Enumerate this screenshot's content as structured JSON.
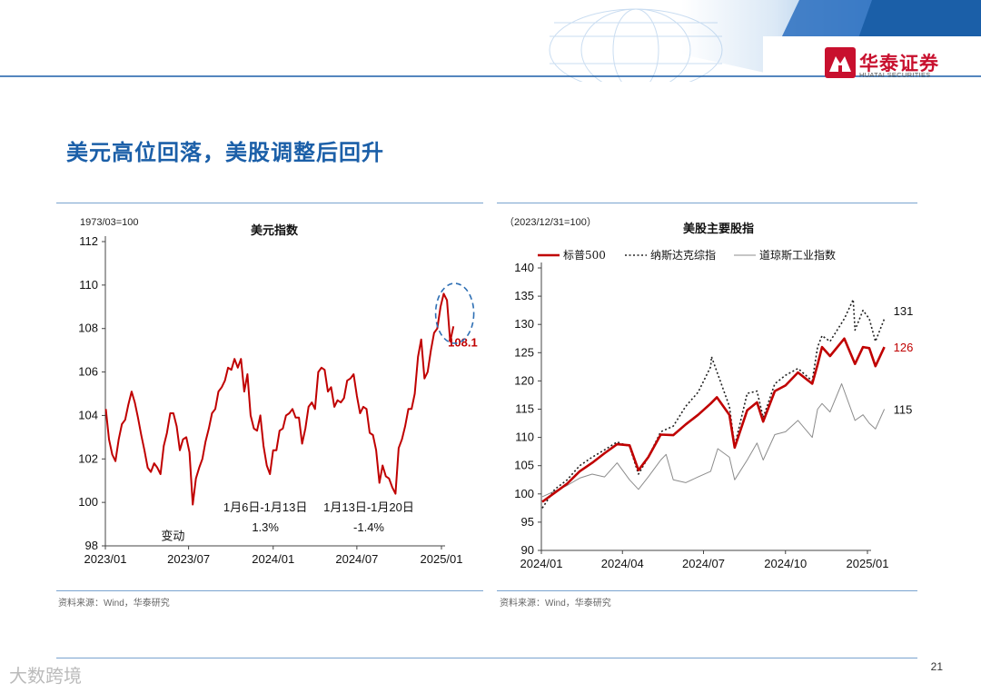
{
  "header": {
    "logo_text": "华泰证券",
    "logo_sub": "HUATAI SECURITIES",
    "accent": "#1b5fa8",
    "brand_red": "#c8102e"
  },
  "slide_title": "美元高位回落，美股调整后回升",
  "page_number": "21",
  "watermark": "大数跨境",
  "chart_data": [
    {
      "type": "line",
      "title": "美元指数",
      "unit_note": "1973/03=100",
      "source": "资料来源：Wind，华泰研究",
      "ylim": [
        98,
        112
      ],
      "yticks": [
        98,
        100,
        102,
        104,
        106,
        108,
        110,
        112
      ],
      "xlim": [
        "2023/01",
        "2025/01"
      ],
      "xticks": [
        "2023/01",
        "2023/07",
        "2024/01",
        "2024/07",
        "2025/01"
      ],
      "series": [
        {
          "color": "#c00000",
          "points": [
            [
              "2023-01-02",
              104.3
            ],
            [
              "2023-01-09",
              102.9
            ],
            [
              "2023-01-16",
              102.2
            ],
            [
              "2023-01-23",
              101.9
            ],
            [
              "2023-01-30",
              102.9
            ],
            [
              "2023-02-06",
              103.6
            ],
            [
              "2023-02-13",
              103.8
            ],
            [
              "2023-02-20",
              104.5
            ],
            [
              "2023-02-27",
              105.1
            ],
            [
              "2023-03-06",
              104.6
            ],
            [
              "2023-03-13",
              103.9
            ],
            [
              "2023-03-20",
              103.1
            ],
            [
              "2023-03-27",
              102.4
            ],
            [
              "2023-04-03",
              101.6
            ],
            [
              "2023-04-10",
              101.4
            ],
            [
              "2023-04-17",
              101.8
            ],
            [
              "2023-04-24",
              101.6
            ],
            [
              "2023-05-01",
              101.3
            ],
            [
              "2023-05-08",
              102.6
            ],
            [
              "2023-05-15",
              103.2
            ],
            [
              "2023-05-22",
              104.1
            ],
            [
              "2023-05-29",
              104.1
            ],
            [
              "2023-06-05",
              103.5
            ],
            [
              "2023-06-12",
              102.4
            ],
            [
              "2023-06-19",
              102.9
            ],
            [
              "2023-06-26",
              103.0
            ],
            [
              "2023-07-03",
              102.3
            ],
            [
              "2023-07-10",
              99.9
            ],
            [
              "2023-07-17",
              101.1
            ],
            [
              "2023-07-24",
              101.6
            ],
            [
              "2023-07-31",
              102.0
            ],
            [
              "2023-08-07",
              102.8
            ],
            [
              "2023-08-14",
              103.4
            ],
            [
              "2023-08-21",
              104.1
            ],
            [
              "2023-08-28",
              104.3
            ],
            [
              "2023-09-04",
              105.1
            ],
            [
              "2023-09-11",
              105.3
            ],
            [
              "2023-09-18",
              105.6
            ],
            [
              "2023-09-25",
              106.2
            ],
            [
              "2023-10-02",
              106.1
            ],
            [
              "2023-10-09",
              106.6
            ],
            [
              "2023-10-16",
              106.2
            ],
            [
              "2023-10-23",
              106.6
            ],
            [
              "2023-10-30",
              105.1
            ],
            [
              "2023-11-06",
              105.9
            ],
            [
              "2023-11-13",
              104.0
            ],
            [
              "2023-11-20",
              103.4
            ],
            [
              "2023-11-27",
              103.3
            ],
            [
              "2023-12-04",
              104.0
            ],
            [
              "2023-12-11",
              102.6
            ],
            [
              "2023-12-18",
              101.7
            ],
            [
              "2023-12-25",
              101.3
            ],
            [
              "2024-01-01",
              102.4
            ],
            [
              "2024-01-08",
              102.4
            ],
            [
              "2024-01-15",
              103.3
            ],
            [
              "2024-01-22",
              103.4
            ],
            [
              "2024-01-29",
              104.0
            ],
            [
              "2024-02-05",
              104.1
            ],
            [
              "2024-02-12",
              104.3
            ],
            [
              "2024-02-19",
              103.9
            ],
            [
              "2024-02-26",
              103.9
            ],
            [
              "2024-03-04",
              102.7
            ],
            [
              "2024-03-11",
              103.4
            ],
            [
              "2024-03-18",
              104.4
            ],
            [
              "2024-03-25",
              104.6
            ],
            [
              "2024-04-01",
              104.3
            ],
            [
              "2024-04-08",
              106.0
            ],
            [
              "2024-04-15",
              106.2
            ],
            [
              "2024-04-22",
              106.1
            ],
            [
              "2024-04-29",
              105.1
            ],
            [
              "2024-05-06",
              105.3
            ],
            [
              "2024-05-13",
              104.4
            ],
            [
              "2024-05-20",
              104.7
            ],
            [
              "2024-05-27",
              104.6
            ],
            [
              "2024-06-03",
              104.8
            ],
            [
              "2024-06-10",
              105.6
            ],
            [
              "2024-06-17",
              105.7
            ],
            [
              "2024-06-24",
              105.9
            ],
            [
              "2024-07-01",
              104.9
            ],
            [
              "2024-07-08",
              104.1
            ],
            [
              "2024-07-15",
              104.4
            ],
            [
              "2024-07-22",
              104.3
            ],
            [
              "2024-07-29",
              103.2
            ],
            [
              "2024-08-05",
              103.1
            ],
            [
              "2024-08-12",
              102.4
            ],
            [
              "2024-08-19",
              100.9
            ],
            [
              "2024-08-26",
              101.7
            ],
            [
              "2024-09-02",
              101.2
            ],
            [
              "2024-09-09",
              101.1
            ],
            [
              "2024-09-16",
              100.7
            ],
            [
              "2024-09-23",
              100.4
            ],
            [
              "2024-09-30",
              102.5
            ],
            [
              "2024-10-07",
              102.9
            ],
            [
              "2024-10-14",
              103.5
            ],
            [
              "2024-10-21",
              104.3
            ],
            [
              "2024-10-28",
              104.3
            ],
            [
              "2024-11-04",
              105.0
            ],
            [
              "2024-11-11",
              106.7
            ],
            [
              "2024-11-18",
              107.5
            ],
            [
              "2024-11-25",
              105.7
            ],
            [
              "2024-12-02",
              106.0
            ],
            [
              "2024-12-09",
              107.0
            ],
            [
              "2024-12-16",
              107.8
            ],
            [
              "2024-12-23",
              108.0
            ],
            [
              "2024-12-30",
              109.0
            ],
            [
              "2025-01-06",
              109.6
            ],
            [
              "2025-01-13",
              109.3
            ],
            [
              "2025-01-20",
              107.4
            ],
            [
              "2025-01-27",
              108.1
            ]
          ]
        }
      ],
      "annotations": [
        {
          "lines": [
            "1月6日-1月13日",
            "1.3%"
          ],
          "x": "2023-12-15",
          "y": 100.0
        },
        {
          "lines": [
            "1月13日-1月20日",
            "-1.4%"
          ],
          "x": "2024-07-27",
          "y": 100.0
        },
        {
          "lines": [
            "变动"
          ],
          "x": "2023-05-28",
          "y": 98.7
        }
      ],
      "end_label": {
        "text": "108.1",
        "x": "2025-01-27",
        "y": 108.1,
        "color": "#c00000"
      },
      "highlight_ellipse": {
        "x": "2025-01-18",
        "y": 108.7,
        "color": "#2e6fb4"
      }
    },
    {
      "type": "line",
      "title": "美股主要股指",
      "unit_note": "（2023/12/31=100）",
      "source": "资料来源：Wind，华泰研究",
      "ylim": [
        90,
        140
      ],
      "yticks": [
        90,
        95,
        100,
        105,
        110,
        115,
        120,
        125,
        130,
        135,
        140
      ],
      "xlim": [
        "2024/01",
        "2025/01"
      ],
      "xticks": [
        "2024/01",
        "2024/04",
        "2024/07",
        "2024/10",
        "2025/01"
      ],
      "legend_position": "top",
      "series": [
        {
          "name": "标普500",
          "color": "#c00000",
          "style": "solid-thick",
          "end_label": "126",
          "points": [
            [
              "2024-01-02",
              98.6
            ],
            [
              "2024-01-16",
              100.2
            ],
            [
              "2024-01-30",
              101.8
            ],
            [
              "2024-02-13",
              104.0
            ],
            [
              "2024-02-27",
              105.5
            ],
            [
              "2024-03-12",
              107.2
            ],
            [
              "2024-03-26",
              108.8
            ],
            [
              "2024-04-09",
              108.6
            ],
            [
              "2024-04-19",
              104.2
            ],
            [
              "2024-04-30",
              106.5
            ],
            [
              "2024-05-14",
              110.5
            ],
            [
              "2024-05-28",
              110.4
            ],
            [
              "2024-06-11",
              112.3
            ],
            [
              "2024-06-25",
              114.0
            ],
            [
              "2024-07-09",
              116.0
            ],
            [
              "2024-07-16",
              117.1
            ],
            [
              "2024-07-30",
              114.0
            ],
            [
              "2024-08-05",
              108.2
            ],
            [
              "2024-08-19",
              114.8
            ],
            [
              "2024-08-30",
              116.2
            ],
            [
              "2024-09-06",
              112.8
            ],
            [
              "2024-09-19",
              118.2
            ],
            [
              "2024-10-01",
              119.2
            ],
            [
              "2024-10-15",
              121.5
            ],
            [
              "2024-10-31",
              119.5
            ],
            [
              "2024-11-06",
              122.9
            ],
            [
              "2024-11-11",
              126.0
            ],
            [
              "2024-11-20",
              124.4
            ],
            [
              "2024-12-06",
              127.5
            ],
            [
              "2024-12-18",
              123.0
            ],
            [
              "2024-12-27",
              126.0
            ],
            [
              "2025-01-03",
              125.8
            ],
            [
              "2025-01-10",
              122.6
            ],
            [
              "2025-01-20",
              126.0
            ]
          ]
        },
        {
          "name": "纳斯达克综指",
          "color": "#222222",
          "style": "dotted",
          "end_label": "131",
          "points": [
            [
              "2024-01-02",
              97.5
            ],
            [
              "2024-01-16",
              100.8
            ],
            [
              "2024-01-30",
              102.5
            ],
            [
              "2024-02-13",
              105.0
            ],
            [
              "2024-02-27",
              106.5
            ],
            [
              "2024-03-12",
              107.8
            ],
            [
              "2024-03-26",
              109.2
            ],
            [
              "2024-04-09",
              108.4
            ],
            [
              "2024-04-19",
              103.5
            ],
            [
              "2024-04-30",
              106.5
            ],
            [
              "2024-05-14",
              111.0
            ],
            [
              "2024-05-28",
              112.0
            ],
            [
              "2024-06-11",
              115.5
            ],
            [
              "2024-06-25",
              118.0
            ],
            [
              "2024-07-09",
              122.5
            ],
            [
              "2024-07-10",
              124.3
            ],
            [
              "2024-07-30",
              115.5
            ],
            [
              "2024-08-05",
              108.5
            ],
            [
              "2024-08-19",
              117.8
            ],
            [
              "2024-08-30",
              118.2
            ],
            [
              "2024-09-06",
              113.5
            ],
            [
              "2024-09-19",
              119.5
            ],
            [
              "2024-10-01",
              121.0
            ],
            [
              "2024-10-15",
              122.2
            ],
            [
              "2024-10-31",
              120.0
            ],
            [
              "2024-11-06",
              126.0
            ],
            [
              "2024-11-11",
              128.0
            ],
            [
              "2024-11-20",
              127.0
            ],
            [
              "2024-12-06",
              131.0
            ],
            [
              "2024-12-16",
              134.4
            ],
            [
              "2024-12-18",
              129.0
            ],
            [
              "2024-12-27",
              132.5
            ],
            [
              "2025-01-03",
              131.0
            ],
            [
              "2025-01-10",
              127.0
            ],
            [
              "2025-01-20",
              131.0
            ]
          ]
        },
        {
          "name": "道琼斯工业指数",
          "color": "#8c8c8c",
          "style": "solid-thin",
          "end_label": "115",
          "points": [
            [
              "2024-01-02",
              99.5
            ],
            [
              "2024-01-16",
              100.5
            ],
            [
              "2024-01-30",
              101.5
            ],
            [
              "2024-02-13",
              102.8
            ],
            [
              "2024-02-27",
              103.5
            ],
            [
              "2024-03-12",
              103.0
            ],
            [
              "2024-03-26",
              105.5
            ],
            [
              "2024-04-09",
              102.5
            ],
            [
              "2024-04-19",
              100.8
            ],
            [
              "2024-04-30",
              103.0
            ],
            [
              "2024-05-14",
              106.0
            ],
            [
              "2024-05-20",
              107.0
            ],
            [
              "2024-05-28",
              102.5
            ],
            [
              "2024-06-11",
              102.0
            ],
            [
              "2024-06-25",
              103.0
            ],
            [
              "2024-07-09",
              104.0
            ],
            [
              "2024-07-17",
              108.0
            ],
            [
              "2024-07-30",
              106.5
            ],
            [
              "2024-08-05",
              102.5
            ],
            [
              "2024-08-19",
              106.0
            ],
            [
              "2024-08-30",
              109.0
            ],
            [
              "2024-09-06",
              106.0
            ],
            [
              "2024-09-19",
              110.5
            ],
            [
              "2024-10-01",
              111.0
            ],
            [
              "2024-10-15",
              113.0
            ],
            [
              "2024-10-31",
              110.0
            ],
            [
              "2024-11-06",
              115.0
            ],
            [
              "2024-11-11",
              116.0
            ],
            [
              "2024-11-20",
              114.5
            ],
            [
              "2024-12-03",
              119.5
            ],
            [
              "2024-12-18",
              113.0
            ],
            [
              "2024-12-27",
              114.0
            ],
            [
              "2025-01-03",
              112.5
            ],
            [
              "2025-01-10",
              111.5
            ],
            [
              "2025-01-20",
              115.0
            ]
          ]
        }
      ]
    }
  ]
}
